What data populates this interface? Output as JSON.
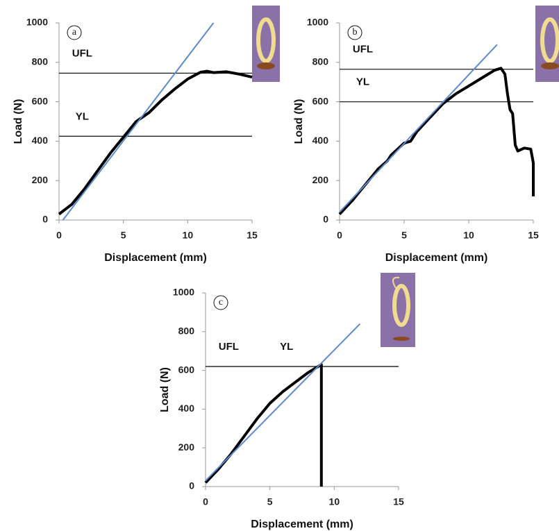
{
  "chart_data": [
    {
      "type": "line",
      "panel": "a",
      "xlabel": "Displacement (mm)",
      "ylabel": "Load (N)",
      "xlim": [
        0,
        15
      ],
      "ylim": [
        0,
        1000
      ],
      "xticks": [
        0,
        5,
        10,
        15
      ],
      "yticks": [
        0,
        200,
        400,
        600,
        800,
        1000
      ],
      "series": [
        {
          "color": "#000000",
          "x": [
            0,
            1,
            2,
            3,
            4,
            5,
            6,
            7,
            8,
            9,
            10,
            11,
            11.5,
            12,
            13,
            14,
            15
          ],
          "values": [
            30,
            80,
            160,
            250,
            340,
            420,
            500,
            545,
            610,
            665,
            715,
            750,
            755,
            748,
            752,
            740,
            725
          ]
        },
        {
          "color": "#5b8bd0",
          "x": [
            0.3,
            12
          ],
          "values": [
            0,
            1000
          ]
        }
      ],
      "hlines": [
        {
          "label": "UFL",
          "value": 745
        },
        {
          "label": "YL",
          "value": 425
        }
      ]
    },
    {
      "type": "line",
      "panel": "b",
      "xlabel": "Displacement (mm)",
      "ylabel": "Load (N)",
      "xlim": [
        0,
        15
      ],
      "ylim": [
        0,
        1000
      ],
      "xticks": [
        0,
        5,
        10,
        15
      ],
      "yticks": [
        0,
        200,
        400,
        600,
        800,
        1000
      ],
      "series": [
        {
          "color": "#000000",
          "x": [
            0,
            1,
            2,
            3,
            3.7,
            4,
            5,
            5.5,
            6,
            7,
            8,
            9,
            10,
            11,
            12,
            12.5,
            12.8,
            13,
            13.2,
            13.4,
            13.6,
            13.8,
            14.3,
            14.8,
            15,
            15
          ],
          "values": [
            30,
            100,
            180,
            260,
            300,
            330,
            390,
            400,
            450,
            520,
            590,
            640,
            680,
            720,
            760,
            770,
            740,
            640,
            560,
            540,
            380,
            350,
            365,
            360,
            290,
            120
          ]
        },
        {
          "color": "#5b8bd0",
          "x": [
            0,
            12.2
          ],
          "values": [
            40,
            890
          ]
        }
      ],
      "hlines": [
        {
          "label": "UFL",
          "value": 765
        },
        {
          "label": "YL",
          "value": 600
        }
      ]
    },
    {
      "type": "line",
      "panel": "c",
      "xlabel": "Displacement (mm)",
      "ylabel": "Load (N)",
      "xlim": [
        0,
        15
      ],
      "ylim": [
        0,
        1000
      ],
      "xticks": [
        0,
        5,
        10,
        15
      ],
      "yticks": [
        0,
        200,
        400,
        600,
        800,
        1000
      ],
      "series": [
        {
          "color": "#000000",
          "x": [
            0,
            1,
            2,
            3,
            4,
            5,
            6,
            7,
            8,
            9,
            9
          ],
          "values": [
            20,
            90,
            170,
            260,
            350,
            430,
            490,
            540,
            590,
            630,
            0
          ]
        },
        {
          "color": "#5b8bd0",
          "x": [
            0,
            12
          ],
          "values": [
            30,
            840
          ]
        }
      ],
      "hlines": [
        {
          "label": "UFL",
          "value": 620
        },
        {
          "label": "YL",
          "value": 620
        }
      ]
    }
  ]
}
